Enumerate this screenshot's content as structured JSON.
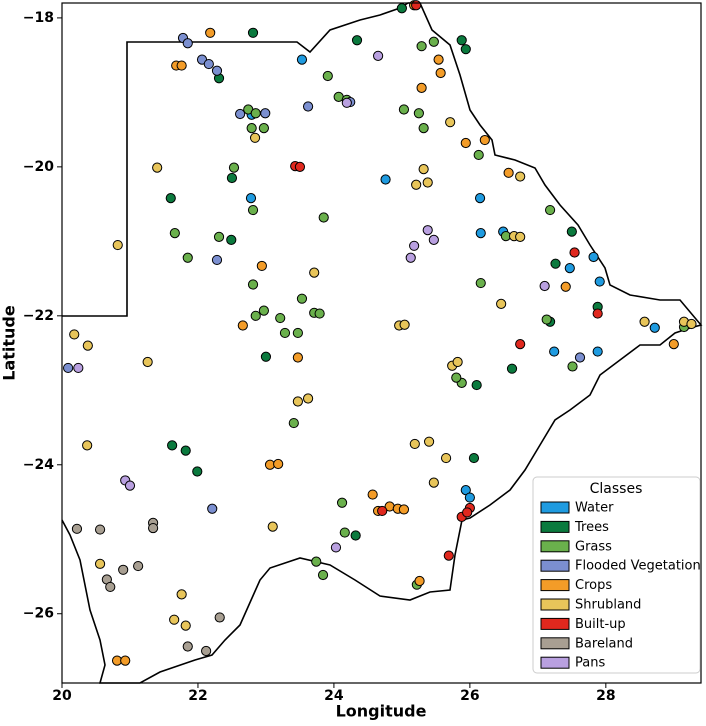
{
  "chart_data": {
    "type": "scatter",
    "x_label": "Longitude",
    "y_label": "Latitude",
    "xlim": [
      20,
      29.4
    ],
    "ylim": [
      -26.93,
      -17.8
    ],
    "xticks": [
      20,
      22,
      24,
      26,
      28
    ],
    "yticks": [
      {
        "value": -26,
        "label": "−26"
      },
      {
        "value": -24,
        "label": "−24"
      },
      {
        "value": -22,
        "label": "−22"
      },
      {
        "value": -20,
        "label": "−20"
      },
      {
        "value": -18,
        "label": "−18"
      }
    ],
    "legend_title": "Classes",
    "legend_position": "lower right",
    "series": [
      {
        "name": "Water",
        "color": "#1f9be0",
        "x": [
          24.76,
          25.94,
          26.49,
          26.16,
          27.88,
          27.91,
          28.72,
          27.24,
          26.15,
          23.53,
          22.78,
          27.47,
          27.82,
          22.79,
          26.0
        ],
        "values": [
          -20.17,
          -24.34,
          -20.87,
          -20.89,
          -22.48,
          -21.54,
          -22.16,
          -22.48,
          -20.42,
          -18.56,
          -20.42,
          -21.36,
          -21.21,
          -19.3,
          -24.44
        ]
      },
      {
        "name": "Trees",
        "color": "#0b7a3e",
        "x": [
          21.6,
          22.5,
          22.81,
          25.94,
          25.0,
          24.34,
          27.26,
          27.5,
          27.88,
          27.18,
          26.62,
          26.1,
          21.62,
          21.82,
          21.99,
          24.32,
          23.0,
          22.31,
          26.06,
          22.49,
          25.88
        ],
        "values": [
          -20.42,
          -20.15,
          -18.2,
          -18.42,
          -17.87,
          -18.3,
          -21.3,
          -20.87,
          -21.88,
          -22.08,
          -22.71,
          -22.93,
          -23.74,
          -23.81,
          -24.09,
          -24.95,
          -22.55,
          -18.81,
          -23.91,
          -20.98,
          -18.3
        ]
      },
      {
        "name": "Grass",
        "color": "#6ab04c",
        "x": [
          21.66,
          21.85,
          22.31,
          22.53,
          22.81,
          22.79,
          22.74,
          22.85,
          22.97,
          23.85,
          23.91,
          24.07,
          24.19,
          22.81,
          22.97,
          22.85,
          23.21,
          23.28,
          23.47,
          23.53,
          23.71,
          23.79,
          23.41,
          24.12,
          24.16,
          23.74,
          23.84,
          25.22,
          25.03,
          25.25,
          25.32,
          25.47,
          25.88,
          25.8,
          26.16,
          26.53,
          26.13,
          27.18,
          27.13,
          27.51,
          29.15,
          25.29
        ],
        "values": [
          -20.89,
          -21.22,
          -20.94,
          -20.01,
          -20.58,
          -19.48,
          -19.23,
          -19.28,
          -19.48,
          -20.68,
          -18.78,
          -19.06,
          -19.1,
          -21.58,
          -21.93,
          -22.0,
          -22.03,
          -22.23,
          -22.23,
          -21.77,
          -21.96,
          -21.97,
          -23.44,
          -24.51,
          -24.91,
          -25.3,
          -25.48,
          -25.61,
          -19.23,
          -19.28,
          -19.48,
          -18.32,
          -22.9,
          -22.83,
          -21.56,
          -20.93,
          -19.84,
          -20.58,
          -22.05,
          -22.68,
          -22.15,
          -18.38
        ]
      },
      {
        "name": "Flooded Vegetation",
        "color": "#7b8fd0",
        "x": [
          21.78,
          21.85,
          22.06,
          22.16,
          22.28,
          22.62,
          22.99,
          23.62,
          24.24,
          22.28,
          22.21,
          27.62,
          20.09
        ],
        "values": [
          -18.27,
          -18.34,
          -18.56,
          -18.62,
          -18.71,
          -19.29,
          -19.28,
          -19.19,
          -19.13,
          -21.25,
          -24.59,
          -22.56,
          -22.7
        ]
      },
      {
        "name": "Crops",
        "color": "#f39c28",
        "x": [
          21.68,
          21.76,
          22.18,
          22.94,
          22.66,
          23.47,
          23.06,
          23.18,
          25.29,
          25.54,
          25.94,
          26.22,
          26.57,
          27.41,
          29.0,
          24.57,
          24.65,
          24.82,
          24.94,
          25.03,
          20.81,
          20.93,
          25.26,
          25.18,
          25.57
        ],
        "values": [
          -18.64,
          -18.64,
          -18.2,
          -21.33,
          -22.13,
          -22.56,
          -24.0,
          -23.99,
          -18.94,
          -18.56,
          -19.68,
          -19.64,
          -20.08,
          -21.61,
          -22.38,
          -24.4,
          -24.62,
          -24.56,
          -24.59,
          -24.6,
          -26.63,
          -26.63,
          -25.56,
          -17.83,
          -18.74
        ]
      },
      {
        "name": "Shrubland",
        "color": "#e8c55a",
        "x": [
          21.4,
          20.82,
          21.26,
          20.18,
          20.38,
          20.37,
          20.56,
          22.84,
          23.71,
          23.47,
          23.62,
          23.1,
          21.76,
          21.65,
          21.82,
          24.96,
          25.04,
          25.19,
          25.4,
          25.47,
          25.65,
          25.74,
          25.82,
          25.21,
          25.38,
          25.32,
          25.71,
          26.46,
          26.65,
          26.74,
          26.74,
          28.57,
          29.15,
          29.26
        ],
        "values": [
          -20.01,
          -21.05,
          -22.62,
          -22.25,
          -22.4,
          -23.74,
          -25.33,
          -19.61,
          -21.42,
          -23.15,
          -23.11,
          -24.83,
          -25.74,
          -26.08,
          -26.16,
          -22.13,
          -22.12,
          -23.72,
          -23.69,
          -24.24,
          -23.91,
          -22.67,
          -22.62,
          -20.24,
          -20.21,
          -20.03,
          -19.4,
          -21.84,
          -20.93,
          -20.94,
          -20.13,
          -22.08,
          -22.08,
          -22.11
        ]
      },
      {
        "name": "Built-up",
        "color": "#e0281e",
        "x": [
          23.43,
          23.5,
          27.54,
          27.88,
          26.74,
          24.71,
          26.0,
          25.88,
          25.96,
          25.69,
          25.21
        ],
        "values": [
          -19.99,
          -20.0,
          -21.15,
          -21.97,
          -22.38,
          -24.62,
          -24.58,
          -24.7,
          -24.64,
          -25.22,
          -17.83
        ]
      },
      {
        "name": "Bareland",
        "color": "#a89f92",
        "x": [
          20.22,
          20.56,
          20.66,
          20.71,
          20.9,
          21.12,
          21.34,
          21.34,
          22.32,
          22.12,
          21.85
        ],
        "values": [
          -24.86,
          -24.87,
          -25.54,
          -25.64,
          -25.41,
          -25.36,
          -24.78,
          -24.85,
          -26.05,
          -26.5,
          -26.44
        ]
      },
      {
        "name": "Pans",
        "color": "#b9a0e0",
        "x": [
          24.65,
          24.19,
          25.18,
          25.13,
          25.38,
          25.47,
          20.93,
          21.0,
          24.03,
          27.1,
          20.24
        ],
        "values": [
          -18.51,
          -19.14,
          -21.06,
          -21.22,
          -20.85,
          -20.98,
          -24.21,
          -24.28,
          -25.11,
          -21.6,
          -22.7
        ]
      }
    ]
  }
}
